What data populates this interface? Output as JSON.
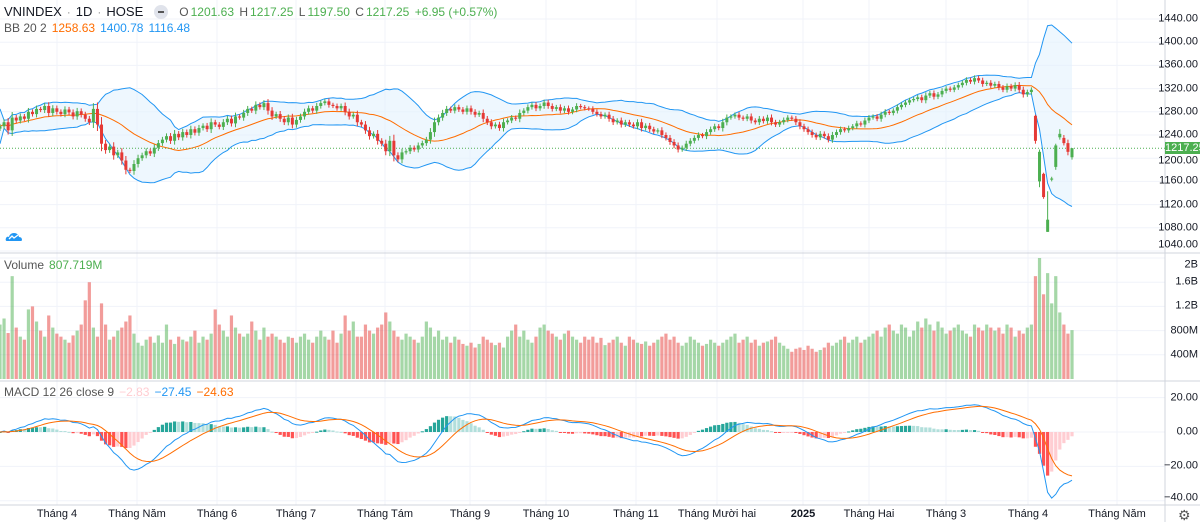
{
  "header": {
    "symbol": "VNINDEX",
    "interval": "1D",
    "exchange": "HOSE",
    "open_label": "O",
    "open": "1201.63",
    "high_label": "H",
    "high": "1217.25",
    "low_label": "L",
    "low": "1197.50",
    "close_label": "C",
    "close": "1217.25",
    "change": "+6.95 (+0.57%)"
  },
  "bb_legend": {
    "name": "BB 20 2",
    "basis": "1258.63",
    "upper": "1400.78",
    "lower": "1116.48"
  },
  "volume_legend": {
    "name": "Volume",
    "value": "807.719M"
  },
  "macd_legend": {
    "name": "MACD 12 26 close 9",
    "hist": "−2.83",
    "macd": "−27.45",
    "signal": "−24.63"
  },
  "last_price_tag": "1217.25",
  "colors": {
    "up": "#4caf50",
    "down": "#e53935",
    "bb_basis": "#ff6d00",
    "bb_band": "#2196f3",
    "bb_fill": "#e3f2fd",
    "macd_line": "#2196f3",
    "signal_line": "#ff6d00",
    "hist_up_strong": "#26a69a",
    "hist_up_weak": "#b2dfdb",
    "hist_down_strong": "#ff5252",
    "hist_down_weak": "#ffcdd2"
  },
  "icons": {
    "logo": "tradingview-cloud-icon",
    "settings": "gear-icon",
    "hide": "minus-circle-icon"
  },
  "chart_data": {
    "type": "candlestick",
    "price_axis": {
      "ticks": [
        "1440.00",
        "1400.00",
        "1360.00",
        "1320.00",
        "1280.00",
        "1240.00",
        "1200.00",
        "1160.00",
        "1120.00",
        "1080.00",
        "1040.00"
      ],
      "range": [
        1040,
        1440
      ]
    },
    "volume_axis": {
      "ticks": [
        "2B",
        "1.6B",
        "1.2B",
        "800M",
        "400M"
      ],
      "range_millions": [
        0,
        2000
      ]
    },
    "macd_axis": {
      "ticks": [
        "20.00",
        "0.00",
        "−20.00",
        "−40.00"
      ],
      "range": [
        -40,
        20
      ]
    },
    "time_axis": [
      {
        "label": "Tháng 4"
      },
      {
        "label": "Tháng Năm"
      },
      {
        "label": "Tháng 6"
      },
      {
        "label": "Tháng 7"
      },
      {
        "label": "Tháng Tám"
      },
      {
        "label": "Tháng 9"
      },
      {
        "label": "Tháng 10"
      },
      {
        "label": "Tháng 11"
      },
      {
        "label": "Tháng Mười hai"
      },
      {
        "label": "2025",
        "bold": true
      },
      {
        "label": "Tháng Hai"
      },
      {
        "label": "Tháng 3"
      },
      {
        "label": "Tháng 4"
      },
      {
        "label": "Tháng Năm"
      }
    ],
    "closes": [
      1255,
      1262,
      1248,
      1270,
      1265,
      1272,
      1268,
      1280,
      1276,
      1285,
      1283,
      1290,
      1278,
      1286,
      1280,
      1276,
      1284,
      1279,
      1272,
      1281,
      1275,
      1268,
      1262,
      1285,
      1258,
      1225,
      1214,
      1220,
      1205,
      1210,
      1196,
      1180,
      1178,
      1190,
      1200,
      1205,
      1212,
      1208,
      1218,
      1226,
      1232,
      1238,
      1230,
      1242,
      1236,
      1245,
      1240,
      1250,
      1244,
      1252,
      1256,
      1250,
      1262,
      1258,
      1254,
      1262,
      1268,
      1260,
      1272,
      1270,
      1278,
      1285,
      1282,
      1292,
      1288,
      1295,
      1282,
      1272,
      1276,
      1268,
      1262,
      1270,
      1258,
      1266,
      1272,
      1280,
      1286,
      1282,
      1290,
      1295,
      1298,
      1292,
      1290,
      1286,
      1290,
      1280,
      1272,
      1275,
      1262,
      1258,
      1248,
      1238,
      1242,
      1230,
      1225,
      1212,
      1230,
      1205,
      1198,
      1210,
      1212,
      1218,
      1215,
      1222,
      1226,
      1232,
      1245,
      1262,
      1270,
      1278,
      1285,
      1282,
      1288,
      1284,
      1280,
      1286,
      1280,
      1275,
      1278,
      1268,
      1262,
      1255,
      1258,
      1252,
      1262,
      1265,
      1270,
      1268,
      1278,
      1282,
      1288,
      1292,
      1286,
      1290,
      1296,
      1290,
      1285,
      1288,
      1282,
      1286,
      1280,
      1284,
      1290,
      1288,
      1286,
      1285,
      1280,
      1276,
      1272,
      1275,
      1268,
      1262,
      1265,
      1258,
      1262,
      1258,
      1255,
      1262,
      1252,
      1256,
      1250,
      1246,
      1248,
      1240,
      1235,
      1228,
      1222,
      1215,
      1218,
      1225,
      1230,
      1235,
      1240,
      1238,
      1245,
      1250,
      1255,
      1252,
      1262,
      1270,
      1272,
      1275,
      1270,
      1268,
      1272,
      1265,
      1262,
      1268,
      1264,
      1270,
      1262,
      1258,
      1262,
      1266,
      1270,
      1268,
      1262,
      1255,
      1250,
      1245,
      1240,
      1236,
      1242,
      1238,
      1232,
      1240,
      1245,
      1250,
      1248,
      1252,
      1255,
      1260,
      1258,
      1265,
      1270,
      1272,
      1268,
      1275,
      1280,
      1278,
      1282,
      1288,
      1292,
      1296,
      1300,
      1302,
      1305,
      1300,
      1308,
      1312,
      1306,
      1310,
      1316,
      1320,
      1318,
      1322,
      1326,
      1330,
      1335,
      1332,
      1338,
      1334,
      1328,
      1330,
      1325,
      1328,
      1322,
      1318,
      1324,
      1320,
      1326,
      1318,
      1310,
      1314,
      1318
    ],
    "recent_ohlc": [
      [
        1273,
        1275,
        1225,
        1230
      ],
      [
        1160,
        1215,
        1150,
        1211
      ],
      [
        1173,
        1175,
        1130,
        1133
      ],
      [
        1073,
        1143,
        1073,
        1094
      ],
      [
        1163,
        1168,
        1160,
        1165
      ],
      [
        1185,
        1225,
        1180,
        1222
      ],
      [
        1236,
        1250,
        1232,
        1242
      ],
      [
        1235,
        1240,
        1222,
        1226
      ],
      [
        1226,
        1232,
        1205,
        1211
      ],
      [
        1201.63,
        1217.25,
        1197.5,
        1217.25
      ]
    ],
    "volumes_millions": [
      900,
      1000,
      760,
      1700,
      850,
      700,
      650,
      1150,
      1200,
      950,
      800,
      700,
      1050,
      850,
      750,
      700,
      650,
      600,
      720,
      800,
      900,
      1300,
      1600,
      850,
      700,
      1250,
      900,
      650,
      700,
      800,
      850,
      950,
      1050,
      750,
      600,
      550,
      650,
      700,
      600,
      720,
      600,
      900,
      650,
      580,
      700,
      650,
      620,
      700,
      800,
      600,
      700,
      650,
      750,
      1150,
      900,
      800,
      700,
      1050,
      850,
      750,
      700,
      750,
      950,
      800,
      650,
      850,
      700,
      750,
      700,
      650,
      600,
      700,
      680,
      600,
      700,
      750,
      650,
      600,
      700,
      800,
      700,
      650,
      800,
      600,
      750,
      1050,
      800,
      950,
      700,
      700,
      900,
      800,
      750,
      850,
      900,
      1100,
      950,
      800,
      700,
      650,
      750,
      700,
      650,
      600,
      700,
      950,
      850,
      700,
      800,
      650,
      700,
      600,
      700,
      650,
      580,
      550,
      600,
      520,
      580,
      700,
      650,
      600,
      560,
      600,
      520,
      700,
      800,
      900,
      700,
      800,
      650,
      600,
      700,
      850,
      900,
      800,
      750,
      700,
      650,
      750,
      800,
      700,
      650,
      600,
      700,
      650,
      700,
      600,
      680,
      560,
      600,
      650,
      700,
      600,
      550,
      700,
      650,
      600,
      580,
      620,
      550,
      600,
      650,
      700,
      750,
      650,
      700,
      600,
      550,
      600,
      700,
      650,
      600,
      550,
      580,
      650,
      600,
      550,
      600,
      650,
      700,
      750,
      600,
      650,
      700,
      600,
      650,
      550,
      600,
      620,
      650,
      700,
      600,
      550,
      500,
      450,
      500,
      520,
      480,
      550,
      500,
      450,
      480,
      520,
      600,
      550,
      600,
      650,
      700,
      600,
      650,
      700,
      600,
      650,
      700,
      750,
      800,
      700,
      850,
      900,
      800,
      750,
      900,
      850,
      700,
      800,
      950,
      850,
      1000,
      900,
      800,
      950,
      850,
      750,
      800,
      850,
      900,
      800,
      750,
      700,
      900,
      850,
      800,
      900,
      850,
      800,
      850,
      750,
      900,
      850,
      700,
      800,
      750,
      850,
      900,
      1700,
      2000,
      1400,
      1750,
      1250,
      1700,
      1100,
      900,
      750,
      807.719
    ],
    "last_price": 1217.25
  }
}
